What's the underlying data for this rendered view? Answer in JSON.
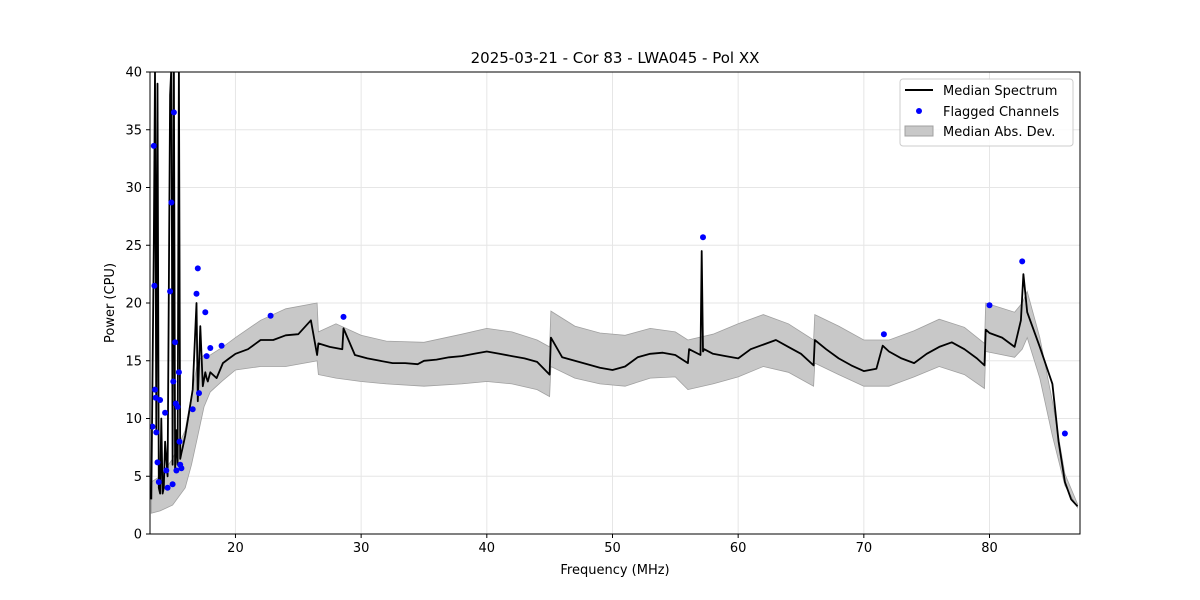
{
  "chart_data": {
    "type": "line",
    "title": "2025-03-21 - Cor 83 - LWA045 - Pol XX",
    "xlabel": "Frequency (MHz)",
    "ylabel": "Power (CPU)",
    "xlim": [
      13.2,
      87.2
    ],
    "ylim": [
      0,
      40
    ],
    "xticks": [
      20,
      30,
      40,
      50,
      60,
      70,
      80
    ],
    "yticks": [
      0,
      5,
      10,
      15,
      20,
      25,
      30,
      35,
      40
    ],
    "grid": true,
    "legend_position": "top-right",
    "legend": [
      "Median Spectrum",
      "Flagged Channels",
      "Median Abs. Dev."
    ],
    "colors": {
      "line": "#000000",
      "flagged": "#0000ff",
      "band": "#c8c8c8",
      "band_edge": "#a0a0a0",
      "grid": "#e6e6e6"
    },
    "series": [
      {
        "name": "Median Spectrum",
        "x": [
          13.3,
          13.5,
          13.6,
          13.7,
          13.8,
          13.9,
          14.0,
          14.1,
          14.2,
          14.3,
          14.4,
          14.6,
          14.8,
          14.9,
          15.0,
          15.1,
          15.2,
          15.3,
          15.4,
          15.5,
          15.6,
          15.7,
          15.8,
          16.0,
          16.3,
          16.6,
          16.9,
          17.0,
          17.2,
          17.4,
          17.6,
          17.7,
          17.8,
          18.0,
          18.5,
          19.0,
          19.5,
          20.0,
          21.0,
          22.0,
          23.0,
          24.0,
          25.0,
          26.0,
          26.5,
          26.6,
          27.5,
          28.5,
          28.6,
          29.5,
          30.5,
          31.5,
          32.5,
          33.5,
          34.5,
          35.0,
          36.0,
          37.0,
          38.0,
          39.0,
          40.0,
          41.0,
          42.0,
          43.0,
          44.0,
          45.0,
          45.1,
          46.0,
          47.0,
          48.0,
          49.0,
          50.0,
          51.0,
          52.0,
          53.0,
          54.0,
          55.0,
          56.0,
          56.1,
          57.0,
          57.1,
          57.2,
          57.3,
          58.0,
          59.0,
          60.0,
          61.0,
          62.0,
          63.0,
          64.0,
          65.0,
          66.0,
          66.1,
          67.0,
          68.0,
          69.0,
          70.0,
          71.0,
          71.5,
          72.0,
          73.0,
          74.0,
          75.0,
          76.0,
          77.0,
          78.0,
          79.0,
          79.6,
          79.7,
          80.0,
          81.0,
          82.0,
          82.5,
          82.7,
          83.0,
          84.0,
          85.0,
          85.5,
          86.0,
          86.5,
          87.0
        ],
        "values": [
          3.0,
          25.0,
          40.0,
          9.0,
          39.0,
          4.0,
          3.5,
          10.0,
          3.5,
          4.0,
          8.0,
          5.0,
          38.0,
          41.0,
          6.0,
          40.0,
          5.5,
          9.0,
          6.0,
          41.0,
          6.5,
          7.0,
          7.5,
          8.5,
          10.5,
          12.5,
          20.0,
          11.5,
          18.0,
          12.8,
          14.0,
          13.5,
          13.2,
          14.0,
          13.5,
          14.8,
          15.2,
          15.6,
          16.0,
          16.8,
          16.8,
          17.2,
          17.3,
          18.5,
          15.5,
          16.5,
          16.2,
          16.0,
          17.8,
          15.5,
          15.2,
          15.0,
          14.8,
          14.8,
          14.7,
          15.0,
          15.1,
          15.3,
          15.4,
          15.6,
          15.8,
          15.6,
          15.4,
          15.2,
          14.9,
          13.8,
          17.0,
          15.3,
          15.0,
          14.7,
          14.4,
          14.2,
          14.5,
          15.3,
          15.6,
          15.7,
          15.5,
          14.8,
          16.0,
          15.5,
          24.5,
          15.8,
          16.0,
          15.6,
          15.4,
          15.2,
          16.0,
          16.4,
          16.8,
          16.2,
          15.6,
          14.6,
          16.8,
          16.0,
          15.2,
          14.6,
          14.1,
          14.3,
          16.3,
          15.8,
          15.2,
          14.8,
          15.6,
          16.2,
          16.6,
          16.0,
          15.2,
          14.6,
          17.7,
          17.4,
          17.0,
          16.2,
          18.5,
          22.5,
          19.2,
          16.2,
          13.0,
          8.0,
          4.5,
          3.0,
          2.4
        ]
      },
      {
        "name": "Median Abs. Dev.",
        "x": [
          13.3,
          14.0,
          15.0,
          16.0,
          16.5,
          17.0,
          17.5,
          18.0,
          19.0,
          20.0,
          22.0,
          24.0,
          26.5,
          26.6,
          28.0,
          30.0,
          32.0,
          35.0,
          38.0,
          40.0,
          42.0,
          44.0,
          45.0,
          45.1,
          47.0,
          49.0,
          51.0,
          53.0,
          55.0,
          56.0,
          58.0,
          60.0,
          62.0,
          64.0,
          66.0,
          66.1,
          68.0,
          70.0,
          72.0,
          74.0,
          76.0,
          78.0,
          79.6,
          79.7,
          82.0,
          82.6,
          83.0,
          84.0,
          85.0,
          86.0,
          87.0
        ],
        "lower": [
          1.8,
          2.0,
          2.5,
          4.0,
          6.0,
          8.5,
          11.0,
          12.3,
          13.3,
          14.2,
          14.5,
          14.5,
          15.0,
          13.8,
          13.5,
          13.2,
          13.0,
          12.8,
          13.0,
          13.2,
          13.0,
          12.5,
          11.9,
          14.5,
          13.5,
          13.0,
          12.8,
          13.5,
          13.6,
          12.5,
          13.0,
          13.6,
          14.5,
          14.0,
          12.8,
          14.8,
          13.8,
          12.8,
          12.8,
          13.6,
          14.5,
          13.8,
          12.6,
          15.8,
          15.3,
          16.0,
          17.0,
          13.5,
          8.5,
          4.2,
          2.3
        ],
        "upper": [
          4.5,
          5.0,
          6.5,
          9.0,
          12.0,
          15.0,
          15.5,
          15.5,
          16.2,
          17.0,
          18.5,
          19.5,
          20.0,
          17.5,
          18.2,
          17.2,
          16.7,
          16.6,
          17.3,
          17.8,
          17.5,
          16.8,
          16.2,
          19.3,
          18.0,
          17.4,
          17.2,
          17.8,
          17.5,
          16.8,
          17.3,
          18.2,
          19.0,
          18.2,
          16.8,
          19.0,
          18.0,
          16.8,
          16.8,
          17.6,
          18.6,
          17.9,
          16.5,
          20.0,
          19.2,
          20.0,
          21.0,
          17.0,
          11.5,
          5.2,
          2.6
        ]
      },
      {
        "name": "Flagged Channels",
        "x": [
          13.4,
          13.5,
          13.55,
          13.6,
          13.65,
          13.7,
          13.8,
          13.9,
          14.0,
          14.4,
          14.5,
          14.6,
          14.8,
          14.9,
          15.0,
          15.05,
          15.1,
          15.2,
          15.25,
          15.3,
          15.4,
          15.5,
          15.55,
          15.6,
          15.7,
          16.6,
          16.9,
          17.0,
          17.1,
          17.6,
          17.7,
          18.0,
          18.9,
          22.8,
          28.6,
          57.2,
          71.6,
          80.0,
          82.6,
          86.0
        ],
        "values": [
          9.3,
          33.6,
          21.5,
          12.5,
          11.8,
          8.8,
          6.2,
          4.5,
          11.6,
          10.5,
          5.5,
          4.0,
          21.0,
          28.7,
          4.3,
          13.2,
          36.5,
          16.6,
          11.3,
          5.5,
          11.0,
          14.0,
          8.0,
          6.0,
          5.7,
          10.8,
          20.8,
          23.0,
          12.2,
          19.2,
          15.4,
          16.1,
          16.3,
          18.9,
          18.8,
          25.7,
          17.3,
          19.8,
          23.6,
          8.7
        ]
      }
    ]
  }
}
